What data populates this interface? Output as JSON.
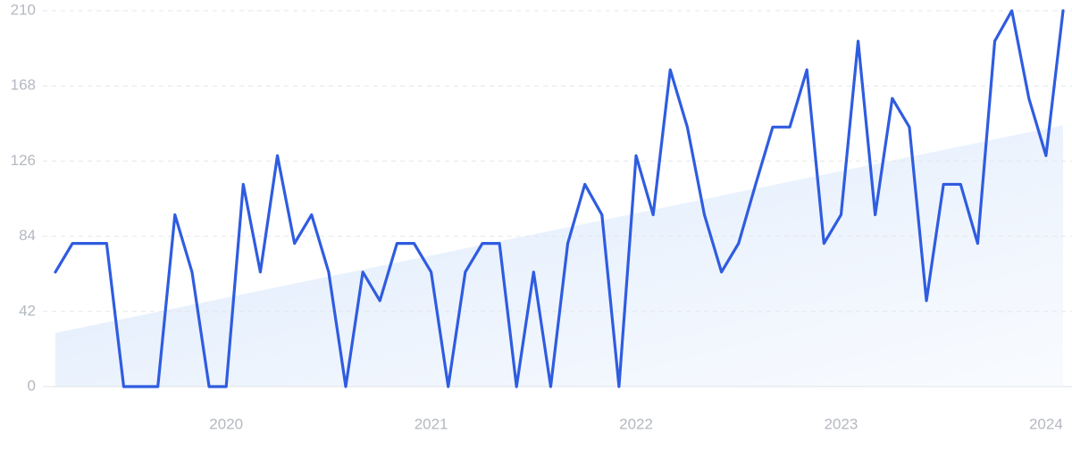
{
  "chart_data": {
    "type": "line",
    "categories": [
      null,
      null,
      null,
      null,
      null,
      null,
      null,
      null,
      null,
      null,
      "2020",
      null,
      null,
      null,
      null,
      null,
      null,
      null,
      null,
      null,
      null,
      null,
      "2021",
      null,
      null,
      null,
      null,
      null,
      null,
      null,
      null,
      null,
      null,
      null,
      "2022",
      null,
      null,
      null,
      null,
      null,
      null,
      null,
      null,
      null,
      null,
      null,
      "2023",
      null,
      null,
      null,
      null,
      null,
      null,
      null,
      null,
      null,
      null,
      null,
      "2024",
      null
    ],
    "series": [
      {
        "color": "#2f5ce0",
        "values": [
          64,
          80,
          80,
          80,
          0,
          0,
          0,
          96,
          64,
          0,
          0,
          113,
          64,
          129,
          80,
          96,
          64,
          0,
          64,
          48,
          80,
          80,
          64,
          0,
          64,
          80,
          80,
          0,
          64,
          0,
          80,
          113,
          96,
          0,
          129,
          96,
          177,
          145,
          96,
          64,
          80,
          113,
          145,
          145,
          177,
          80,
          96,
          193,
          96,
          161,
          145,
          48,
          113,
          113,
          80,
          193,
          210,
          161,
          129,
          210
        ]
      }
    ],
    "trend": {
      "color": "#dbe8fb",
      "values": [
        30,
        146
      ]
    },
    "ylim": [
      0,
      210
    ],
    "yticks": [
      0,
      42,
      84,
      126,
      168,
      210
    ],
    "grid": true
  }
}
